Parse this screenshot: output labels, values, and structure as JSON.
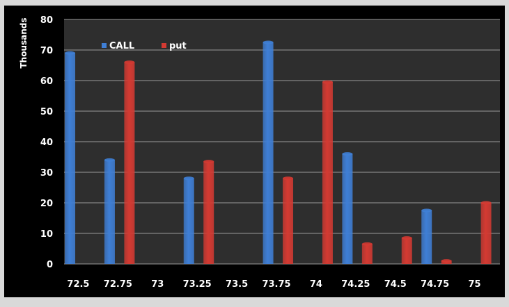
{
  "chart_data": {
    "type": "bar",
    "title": "",
    "xlabel": "",
    "ylabel": "Thousands",
    "ylim": [
      0,
      80
    ],
    "yticks": [
      0,
      10,
      20,
      30,
      40,
      50,
      60,
      70,
      80
    ],
    "grid": true,
    "legend_position": "top-left",
    "categories": [
      "72.5",
      "72.75",
      "73",
      "73.25",
      "73.5",
      "73.75",
      "74",
      "74.25",
      "74.5",
      "74.75",
      "75"
    ],
    "series": [
      {
        "name": "CALL",
        "color": "#3f7fd6",
        "values": [
          69,
          34,
          0,
          28,
          0,
          72.5,
          0,
          36,
          0,
          17.5,
          0
        ]
      },
      {
        "name": "put",
        "color": "#d43a32",
        "values": [
          0,
          66,
          0,
          33.5,
          0,
          28,
          59.5,
          6.5,
          8.5,
          1,
          20
        ]
      }
    ],
    "colors": {
      "background": "#000000",
      "plot_area": "#2e2e2e",
      "grid": "#9a9a9a",
      "text": "#ffffff"
    }
  }
}
